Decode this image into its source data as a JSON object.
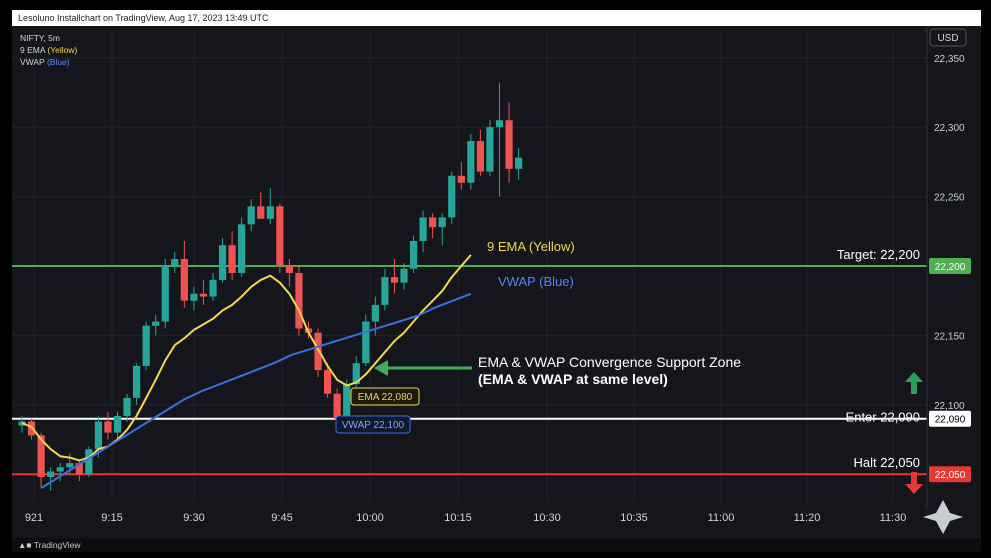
{
  "header": {
    "title": "Lesoluno Installchart on TradingView, Aug 17, 2023 13:49 UTC"
  },
  "legend": {
    "symbol": "NIFTY, 5m",
    "ema_prefix": "9 EMA ",
    "ema_color_label": "(Yellow)",
    "vwap_prefix": "VWAP ",
    "vwap_color_label": "(Blue)"
  },
  "currency": "USD",
  "footer": {
    "brand": "TradingView",
    "logo": "tradingview-logo"
  },
  "colors": {
    "background": "#14161c",
    "up": "#26a69a",
    "down": "#ef5350",
    "ema": "#f2d84b",
    "vwap": "#3a6fe0",
    "target": "#4caf50",
    "enter": "#ffffff",
    "halt": "#e53935"
  },
  "chart_data": {
    "type": "candlestick",
    "ylim": [
      22030,
      22370
    ],
    "y_ticks": [
      22350,
      22300,
      22250,
      22150,
      22100
    ],
    "y_tick_labels": [
      "22,350",
      "22,300",
      "22,250",
      "22,150",
      "22,100"
    ],
    "x_ticks": [
      "921",
      "9:15",
      "9:30",
      "9:45",
      "10:00",
      "10:15",
      "10:30",
      "10:35",
      "11:00",
      "11:20",
      "11:30"
    ],
    "candles": [
      {
        "o": 22085,
        "h": 22092,
        "l": 22080,
        "c": 22088
      },
      {
        "o": 22088,
        "h": 22090,
        "l": 22075,
        "c": 22078
      },
      {
        "o": 22078,
        "h": 22080,
        "l": 22040,
        "c": 22048
      },
      {
        "o": 22048,
        "h": 22055,
        "l": 22038,
        "c": 22052
      },
      {
        "o": 22052,
        "h": 22058,
        "l": 22045,
        "c": 22055
      },
      {
        "o": 22055,
        "h": 22065,
        "l": 22050,
        "c": 22058
      },
      {
        "o": 22058,
        "h": 22060,
        "l": 22045,
        "c": 22050
      },
      {
        "o": 22050,
        "h": 22070,
        "l": 22048,
        "c": 22068
      },
      {
        "o": 22068,
        "h": 22092,
        "l": 22062,
        "c": 22088
      },
      {
        "o": 22088,
        "h": 22095,
        "l": 22075,
        "c": 22080
      },
      {
        "o": 22080,
        "h": 22095,
        "l": 22075,
        "c": 22092
      },
      {
        "o": 22092,
        "h": 22108,
        "l": 22088,
        "c": 22105
      },
      {
        "o": 22105,
        "h": 22130,
        "l": 22100,
        "c": 22128
      },
      {
        "o": 22128,
        "h": 22160,
        "l": 22125,
        "c": 22157
      },
      {
        "o": 22157,
        "h": 22165,
        "l": 22150,
        "c": 22160
      },
      {
        "o": 22160,
        "h": 22205,
        "l": 22155,
        "c": 22200
      },
      {
        "o": 22200,
        "h": 22210,
        "l": 22195,
        "c": 22205
      },
      {
        "o": 22205,
        "h": 22218,
        "l": 22170,
        "c": 22175
      },
      {
        "o": 22175,
        "h": 22185,
        "l": 22168,
        "c": 22180
      },
      {
        "o": 22180,
        "h": 22190,
        "l": 22172,
        "c": 22178
      },
      {
        "o": 22178,
        "h": 22195,
        "l": 22175,
        "c": 22190
      },
      {
        "o": 22190,
        "h": 22220,
        "l": 22188,
        "c": 22215
      },
      {
        "o": 22215,
        "h": 22225,
        "l": 22190,
        "c": 22195
      },
      {
        "o": 22195,
        "h": 22235,
        "l": 22192,
        "c": 22230
      },
      {
        "o": 22230,
        "h": 22248,
        "l": 22225,
        "c": 22243
      },
      {
        "o": 22243,
        "h": 22253,
        "l": 22236,
        "c": 22234
      },
      {
        "o": 22234,
        "h": 22256,
        "l": 22230,
        "c": 22243
      },
      {
        "o": 22243,
        "h": 22245,
        "l": 22195,
        "c": 22200
      },
      {
        "o": 22200,
        "h": 22205,
        "l": 22185,
        "c": 22195
      },
      {
        "o": 22195,
        "h": 22200,
        "l": 22150,
        "c": 22155
      },
      {
        "o": 22155,
        "h": 22160,
        "l": 22148,
        "c": 22152
      },
      {
        "o": 22152,
        "h": 22155,
        "l": 22120,
        "c": 22125
      },
      {
        "o": 22125,
        "h": 22130,
        "l": 22105,
        "c": 22108
      },
      {
        "o": 22108,
        "h": 22112,
        "l": 22085,
        "c": 22090
      },
      {
        "o": 22090,
        "h": 22118,
        "l": 22085,
        "c": 22115
      },
      {
        "o": 22115,
        "h": 22135,
        "l": 22112,
        "c": 22130
      },
      {
        "o": 22130,
        "h": 22165,
        "l": 22128,
        "c": 22160
      },
      {
        "o": 22160,
        "h": 22178,
        "l": 22150,
        "c": 22172
      },
      {
        "o": 22172,
        "h": 22198,
        "l": 22168,
        "c": 22192
      },
      {
        "o": 22192,
        "h": 22205,
        "l": 22180,
        "c": 22188
      },
      {
        "o": 22188,
        "h": 22202,
        "l": 22183,
        "c": 22198
      },
      {
        "o": 22198,
        "h": 22222,
        "l": 22195,
        "c": 22218
      },
      {
        "o": 22218,
        "h": 22240,
        "l": 22210,
        "c": 22235
      },
      {
        "o": 22235,
        "h": 22238,
        "l": 22220,
        "c": 22228
      },
      {
        "o": 22228,
        "h": 22238,
        "l": 22215,
        "c": 22235
      },
      {
        "o": 22235,
        "h": 22268,
        "l": 22230,
        "c": 22265
      },
      {
        "o": 22265,
        "h": 22275,
        "l": 22255,
        "c": 22260
      },
      {
        "o": 22260,
        "h": 22295,
        "l": 22255,
        "c": 22290
      },
      {
        "o": 22290,
        "h": 22298,
        "l": 22265,
        "c": 22268
      },
      {
        "o": 22268,
        "h": 22305,
        "l": 22265,
        "c": 22300
      },
      {
        "o": 22300,
        "h": 22332,
        "l": 22250,
        "c": 22305
      },
      {
        "o": 22305,
        "h": 22318,
        "l": 22260,
        "c": 22270
      },
      {
        "o": 22270,
        "h": 22285,
        "l": 22262,
        "c": 22278
      }
    ],
    "ema": [
      22087,
      22084,
      22075,
      22068,
      22063,
      22062,
      22060,
      22062,
      22068,
      22070,
      22075,
      22082,
      22092,
      22105,
      22118,
      22132,
      22143,
      22148,
      22154,
      22158,
      22162,
      22168,
      22172,
      22178,
      22185,
      22190,
      22193,
      22188,
      22180,
      22168,
      22152,
      22140,
      22128,
      22118,
      22114,
      22116,
      22122,
      22130,
      22138,
      22146,
      22152,
      22160,
      22168,
      22175,
      22182,
      22192,
      22200,
      22208
    ],
    "ema_x_span": [
      0,
      47
    ],
    "vwap": [
      22040,
      22048,
      22056,
      22064,
      22072,
      22080,
      22088,
      22096,
      22104,
      22110,
      22115,
      22120,
      22125,
      22130,
      22136,
      22140,
      22144,
      22148,
      22152,
      22156,
      22160,
      22164,
      22170,
      22175,
      22180
    ],
    "vwap_x_span": [
      2,
      47
    ],
    "levels": [
      {
        "name": "target",
        "label": "Target: 22,200",
        "value": 22200,
        "badge": "22,200"
      },
      {
        "name": "enter",
        "label": "Enter 22,090",
        "value": 22090,
        "badge": "22,090"
      },
      {
        "name": "halt",
        "label": "Halt 22,050",
        "value": 22050,
        "badge": "22,050"
      }
    ],
    "annotations": {
      "ema_label": "9 EMA (Yellow)",
      "vwap_label": "VWAP (Blue)",
      "zone_line1": "EMA & VWAP Convergence Support Zone",
      "zone_line2": "(EMA & VWAP at same level)",
      "ema_badge": "EMA 22,080",
      "vwap_badge": "VWAP 22,100"
    }
  }
}
